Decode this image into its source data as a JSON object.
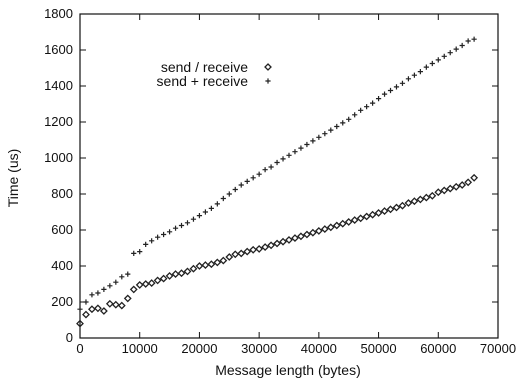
{
  "chart_data": {
    "type": "scatter",
    "title": "",
    "xlabel": "Message length (bytes)",
    "ylabel": "Time (us)",
    "xlim": [
      0,
      70000
    ],
    "ylim": [
      0,
      1800
    ],
    "xticks": [
      0,
      10000,
      20000,
      30000,
      40000,
      50000,
      60000,
      70000
    ],
    "yticks": [
      0,
      200,
      400,
      600,
      800,
      1000,
      1200,
      1400,
      1600,
      1800
    ],
    "grid": false,
    "legend_position": "top-left",
    "series": [
      {
        "name": "send / receive",
        "marker": "diamond",
        "x": [
          0,
          1000,
          2000,
          3000,
          4000,
          5000,
          6000,
          7000,
          8000,
          9000,
          10000,
          11000,
          12000,
          13000,
          14000,
          15000,
          16000,
          17000,
          18000,
          19000,
          20000,
          21000,
          22000,
          23000,
          24000,
          25000,
          26000,
          27000,
          28000,
          29000,
          30000,
          31000,
          32000,
          33000,
          34000,
          35000,
          36000,
          37000,
          38000,
          39000,
          40000,
          41000,
          42000,
          43000,
          44000,
          45000,
          46000,
          47000,
          48000,
          49000,
          50000,
          51000,
          52000,
          53000,
          54000,
          55000,
          56000,
          57000,
          58000,
          59000,
          60000,
          61000,
          62000,
          63000,
          64000,
          65000,
          66000
        ],
        "y": [
          80,
          130,
          160,
          165,
          150,
          190,
          185,
          180,
          220,
          270,
          295,
          300,
          305,
          320,
          330,
          345,
          355,
          360,
          370,
          385,
          400,
          405,
          410,
          420,
          430,
          450,
          465,
          470,
          480,
          490,
          495,
          505,
          515,
          525,
          535,
          545,
          555,
          565,
          575,
          585,
          595,
          605,
          615,
          625,
          635,
          645,
          655,
          665,
          675,
          685,
          695,
          705,
          715,
          725,
          735,
          750,
          760,
          770,
          780,
          790,
          810,
          820,
          830,
          840,
          850,
          865,
          890
        ]
      },
      {
        "name": "send + receive",
        "marker": "plus",
        "x": [
          0,
          1000,
          2000,
          3000,
          4000,
          5000,
          6000,
          7000,
          8000,
          9000,
          10000,
          11000,
          12000,
          13000,
          14000,
          15000,
          16000,
          17000,
          18000,
          19000,
          20000,
          21000,
          22000,
          23000,
          24000,
          25000,
          26000,
          27000,
          28000,
          29000,
          30000,
          31000,
          32000,
          33000,
          34000,
          35000,
          36000,
          37000,
          38000,
          39000,
          40000,
          41000,
          42000,
          43000,
          44000,
          45000,
          46000,
          47000,
          48000,
          49000,
          50000,
          51000,
          52000,
          53000,
          54000,
          55000,
          56000,
          57000,
          58000,
          59000,
          60000,
          61000,
          62000,
          63000,
          64000,
          65000,
          66000
        ],
        "y": [
          160,
          200,
          240,
          250,
          270,
          290,
          310,
          340,
          355,
          470,
          480,
          520,
          540,
          560,
          575,
          590,
          610,
          625,
          640,
          660,
          680,
          700,
          720,
          745,
          775,
          800,
          825,
          850,
          870,
          890,
          910,
          935,
          950,
          975,
          995,
          1015,
          1035,
          1055,
          1075,
          1095,
          1115,
          1135,
          1155,
          1175,
          1195,
          1215,
          1240,
          1265,
          1285,
          1305,
          1330,
          1355,
          1375,
          1395,
          1415,
          1440,
          1460,
          1480,
          1505,
          1525,
          1545,
          1565,
          1585,
          1605,
          1625,
          1650,
          1660
        ]
      }
    ]
  }
}
